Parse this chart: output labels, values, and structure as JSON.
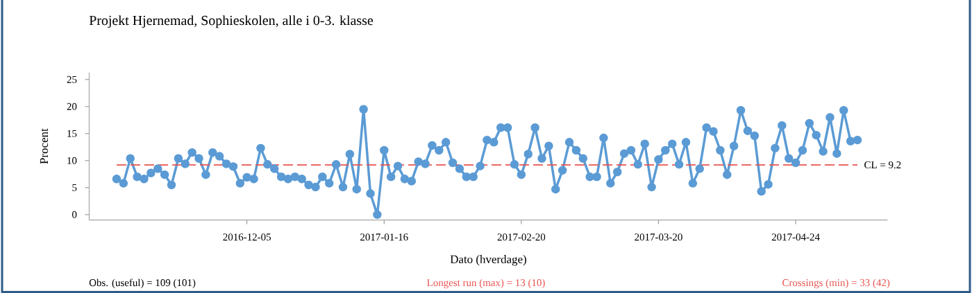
{
  "chart_data": {
    "type": "line",
    "title": "Projekt Hjernemad, Sophieskolen, alle i 0-3. klasse",
    "xlabel": "Dato (hverdage)",
    "ylabel": "Procent",
    "categories": [
      null,
      null,
      null,
      null,
      null,
      null,
      null,
      null,
      null,
      null,
      null,
      null,
      null,
      null,
      null,
      null,
      null,
      null,
      null,
      "2016-12-05",
      null,
      null,
      null,
      null,
      null,
      null,
      null,
      null,
      null,
      null,
      null,
      null,
      null,
      null,
      null,
      null,
      null,
      null,
      null,
      "2017-01-16",
      null,
      null,
      null,
      null,
      null,
      null,
      null,
      null,
      null,
      null,
      null,
      null,
      null,
      null,
      null,
      null,
      null,
      null,
      null,
      "2017-02-20",
      null,
      null,
      null,
      null,
      null,
      null,
      null,
      null,
      null,
      null,
      null,
      null,
      null,
      null,
      null,
      null,
      null,
      null,
      null,
      "2017-03-20",
      null,
      null,
      null,
      null,
      null,
      null,
      null,
      null,
      null,
      null,
      null,
      null,
      null,
      null,
      null,
      null,
      null,
      null,
      null,
      "2017-04-24",
      null,
      null,
      null,
      null,
      null,
      null,
      null,
      null,
      null
    ],
    "series": [
      {
        "color": "#5b9bd5",
        "values": [
          6.6,
          5.8,
          10.4,
          7.0,
          6.6,
          7.7,
          8.5,
          7.4,
          5.5,
          10.4,
          9.4,
          11.5,
          10.4,
          7.4,
          11.5,
          10.8,
          9.4,
          8.9,
          5.8,
          6.9,
          6.6,
          12.3,
          9.3,
          8.5,
          7.0,
          6.6,
          7.0,
          6.6,
          5.5,
          5.1,
          7.0,
          5.8,
          9.3,
          5.1,
          11.2,
          4.7,
          19.5,
          3.9,
          0,
          11.9,
          7.0,
          9.0,
          6.6,
          6.2,
          9.8,
          9.4,
          12.8,
          11.9,
          13.4,
          9.6,
          8.5,
          7.0,
          7.0,
          9.0,
          13.8,
          13.4,
          16.1,
          16.1,
          9.3,
          7.4,
          11.2,
          16.1,
          10.4,
          12.7,
          4.7,
          8.2,
          13.4,
          11.9,
          10.4,
          7.0,
          7.0,
          14.2,
          5.8,
          7.9,
          11.3,
          11.9,
          9.3,
          13.1,
          5.1,
          10.2,
          11.9,
          13.1,
          9.3,
          13.4,
          5.8,
          8.5,
          16.1,
          15.4,
          11.9,
          7.4,
          12.7,
          19.3,
          15.5,
          14.6,
          4.3,
          5.6,
          12.3,
          16.5,
          10.4,
          9.6,
          11.9,
          16.9,
          14.7,
          11.7,
          18.0,
          11.3,
          19.3,
          13.6,
          13.8
        ]
      }
    ],
    "ylim": [
      -1,
      26.3
    ],
    "yticks": [
      0,
      5,
      10,
      15,
      20,
      25
    ],
    "marker": "circle",
    "line_style": "solid",
    "grid": false,
    "ref_lines": [
      {
        "axis": "y",
        "value": 9.2,
        "label": "CL = 9.2",
        "color": "#e8534f",
        "line_style": "dashed"
      }
    ],
    "annotations": [
      "Obs. (useful) = 109 (101)",
      "Longest run (max) = 13 (10)",
      "Crossings (min) = 33 (42)"
    ]
  }
}
